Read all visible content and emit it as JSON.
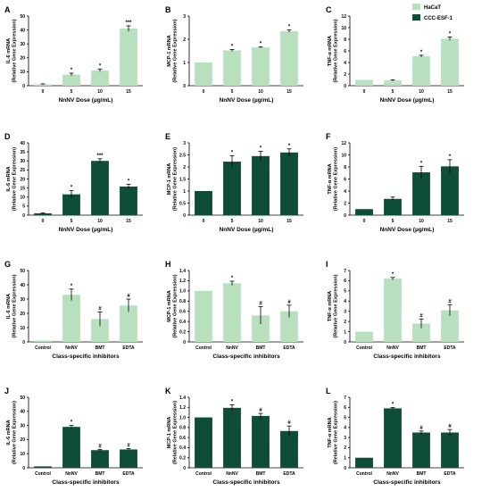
{
  "colors": {
    "HaCaT": "#b8dfbe",
    "CCC-ESF-1": "#0e4d38"
  },
  "legend": [
    {
      "name": "HaCaT",
      "color": "#b8dfbe"
    },
    {
      "name": "CCC-ESF-1",
      "color": "#0e4d38"
    }
  ],
  "chart_data": [
    {
      "panel": "A",
      "type": "bar",
      "series": "HaCaT",
      "categories": [
        "0",
        "5",
        "10",
        "15"
      ],
      "values": [
        1,
        8,
        11,
        41
      ],
      "errors": [
        0.3,
        1,
        1,
        2
      ],
      "sig": [
        "",
        "*",
        "*",
        "***"
      ],
      "ylim": [
        0,
        50
      ],
      "yticks": [
        "0",
        "10",
        "20",
        "30",
        "40",
        "50"
      ],
      "xlabel": "NnNV Dose (µg/mL)",
      "ylabel": [
        "IL-6 mRNA",
        "(Relative Gene Expression)"
      ]
    },
    {
      "panel": "B",
      "type": "bar",
      "series": "HaCaT",
      "categories": [
        "0",
        "5",
        "10",
        "15"
      ],
      "values": [
        1,
        1.52,
        1.65,
        2.35
      ],
      "errors": [
        0,
        0.04,
        0.03,
        0.05
      ],
      "sig": [
        "",
        "*",
        "*",
        "*"
      ],
      "ylim": [
        0,
        3
      ],
      "yticks": [
        "0",
        "1",
        "2",
        "3"
      ],
      "xlabel": "NnNV Dose (µg/mL)",
      "ylabel": [
        "MCP-1 mRNA",
        "(Relative Gene Expression)"
      ]
    },
    {
      "panel": "C",
      "type": "bar",
      "series": "HaCaT",
      "categories": [
        "0",
        "5",
        "10",
        "15"
      ],
      "values": [
        1,
        0.9,
        5.1,
        8.1
      ],
      "errors": [
        0,
        0.1,
        0.15,
        0.3
      ],
      "sig": [
        "",
        "",
        "*",
        "*"
      ],
      "ylim": [
        0,
        12
      ],
      "yticks": [
        "0",
        "2",
        "4",
        "6",
        "8",
        "10",
        "12"
      ],
      "xlabel": "NnNV Dose (µg/mL)",
      "ylabel": [
        "TNF-α mRNA",
        "(Relative Gene Expression)"
      ]
    },
    {
      "panel": "D",
      "type": "bar",
      "series": "CCC-ESF-1",
      "categories": [
        "0",
        "5",
        "10",
        "15"
      ],
      "values": [
        1,
        11.5,
        30,
        15.8
      ],
      "errors": [
        0.2,
        2,
        1.2,
        1.2
      ],
      "sig": [
        "",
        "*",
        "***",
        "*"
      ],
      "ylim": [
        0,
        40
      ],
      "yticks": [
        "0",
        "5",
        "10",
        "15",
        "20",
        "25",
        "30",
        "35",
        "40"
      ],
      "xlabel": "NnNV Dose (µg/mL)",
      "ylabel": [
        "IL-6 mRNA",
        "(Relative Gene Expression)"
      ]
    },
    {
      "panel": "E",
      "type": "bar",
      "series": "CCC-ESF-1",
      "categories": [
        "0",
        "5",
        "10",
        "15"
      ],
      "values": [
        1,
        2.22,
        2.45,
        2.6
      ],
      "errors": [
        0,
        0.25,
        0.2,
        0.15
      ],
      "sig": [
        "",
        "*",
        "*",
        "*"
      ],
      "ylim": [
        0,
        3
      ],
      "yticks": [
        "0",
        "0.5",
        "1",
        "1.5",
        "2",
        "2.5",
        "3"
      ],
      "xlabel": "NnNV Dose (µg/mL)",
      "ylabel": [
        "MCP-1 mRNA",
        "(Relative Gene Expression)"
      ]
    },
    {
      "panel": "F",
      "type": "bar",
      "series": "CCC-ESF-1",
      "categories": [
        "0",
        "5",
        "10",
        "15"
      ],
      "values": [
        1,
        2.7,
        7.1,
        8.1
      ],
      "errors": [
        0,
        0.3,
        1,
        1.1
      ],
      "sig": [
        "",
        "",
        "*",
        "*"
      ],
      "ylim": [
        0,
        12
      ],
      "yticks": [
        "0",
        "2",
        "4",
        "6",
        "8",
        "10",
        "12"
      ],
      "xlabel": "NnNV Dose (µg/mL)",
      "ylabel": [
        "TNF-α mRNA",
        "(Relative Gene Expression)"
      ]
    },
    {
      "panel": "G",
      "type": "bar",
      "series": "HaCaT",
      "categories": [
        "Control",
        "NnNV",
        "BMT",
        "EDTA"
      ],
      "values": [
        1,
        33,
        16,
        25.5
      ],
      "errors": [
        0,
        4,
        5,
        4.5
      ],
      "sig": [
        "",
        "*",
        "#",
        "#"
      ],
      "ylim": [
        0,
        50
      ],
      "yticks": [
        "0",
        "10",
        "20",
        "30",
        "40",
        "50"
      ],
      "xlabel": "Class-specific inhibitors",
      "ylabel": [
        "IL-6 mRNA",
        "(Relative Gene Expression)"
      ]
    },
    {
      "panel": "H",
      "type": "bar",
      "series": "HaCaT",
      "categories": [
        "Control",
        "NnNV",
        "BMT",
        "EDTA"
      ],
      "values": [
        1,
        1.15,
        0.52,
        0.6
      ],
      "errors": [
        0,
        0.04,
        0.17,
        0.12
      ],
      "sig": [
        "",
        "*",
        "#",
        "#"
      ],
      "ylim": [
        0,
        1.4
      ],
      "yticks": [
        "0",
        "0.2",
        "0.4",
        "0.6",
        "0.8",
        "1.0",
        "1.2",
        "1.4"
      ],
      "xlabel": "Class-specific inhibitors",
      "ylabel": [
        "MCP-1 mRNA",
        "(Relative Gene Expression)"
      ]
    },
    {
      "panel": "I",
      "type": "bar",
      "series": "HaCaT",
      "categories": [
        "Control",
        "NnNV",
        "BMT",
        "EDTA"
      ],
      "values": [
        1,
        6.2,
        1.8,
        3.1
      ],
      "errors": [
        0,
        0.12,
        0.45,
        0.55
      ],
      "sig": [
        "",
        "*",
        "#",
        "#"
      ],
      "ylim": [
        0,
        7
      ],
      "yticks": [
        "0",
        "1",
        "2",
        "3",
        "4",
        "5",
        "6",
        "7"
      ],
      "xlabel": "Class-specific inhibitors",
      "ylabel": [
        "TNF-α mRNA",
        "(Relative Gene Expression)"
      ]
    },
    {
      "panel": "J",
      "type": "bar",
      "series": "CCC-ESF-1",
      "categories": [
        "Control",
        "NnNV",
        "BMT",
        "EDTA"
      ],
      "values": [
        1,
        29,
        12.5,
        13
      ],
      "errors": [
        0,
        1,
        0.6,
        0.6
      ],
      "sig": [
        "",
        "*",
        "#",
        "#"
      ],
      "ylim": [
        0,
        50
      ],
      "yticks": [
        "0",
        "10",
        "20",
        "30",
        "40",
        "50"
      ],
      "xlabel": "Class-specific inhibitors",
      "ylabel": [
        "IL-6 mRNA",
        "(Relative Gene Expression)"
      ]
    },
    {
      "panel": "K",
      "type": "bar",
      "series": "CCC-ESF-1",
      "categories": [
        "Control",
        "NnNV",
        "BMT",
        "EDTA"
      ],
      "values": [
        1,
        1.19,
        1.03,
        0.73
      ],
      "errors": [
        0,
        0.06,
        0.05,
        0.1
      ],
      "sig": [
        "",
        "*",
        "#",
        "#"
      ],
      "ylim": [
        0,
        1.4
      ],
      "yticks": [
        "0",
        "0.2",
        "0.4",
        "0.6",
        "0.8",
        "1.0",
        "1.2",
        "1.4"
      ],
      "xlabel": "Class-specific inhibitors",
      "ylabel": [
        "MCP-1 mRNA",
        "(Relative Gene Expression)"
      ]
    },
    {
      "panel": "L",
      "type": "bar",
      "series": "CCC-ESF-1",
      "categories": [
        "Control",
        "NnNV",
        "BMT",
        "EDTA"
      ],
      "values": [
        1,
        5.9,
        3.5,
        3.5
      ],
      "errors": [
        0,
        0.08,
        0.15,
        0.3
      ],
      "sig": [
        "",
        "*",
        "#",
        "#"
      ],
      "ylim": [
        0,
        7
      ],
      "yticks": [
        "0",
        "1",
        "2",
        "3",
        "4",
        "5",
        "6",
        "7"
      ],
      "xlabel": "Class-specific inhibitors",
      "ylabel": [
        "TNF-α mRNA",
        "(Relative Gene Expression)"
      ]
    }
  ]
}
